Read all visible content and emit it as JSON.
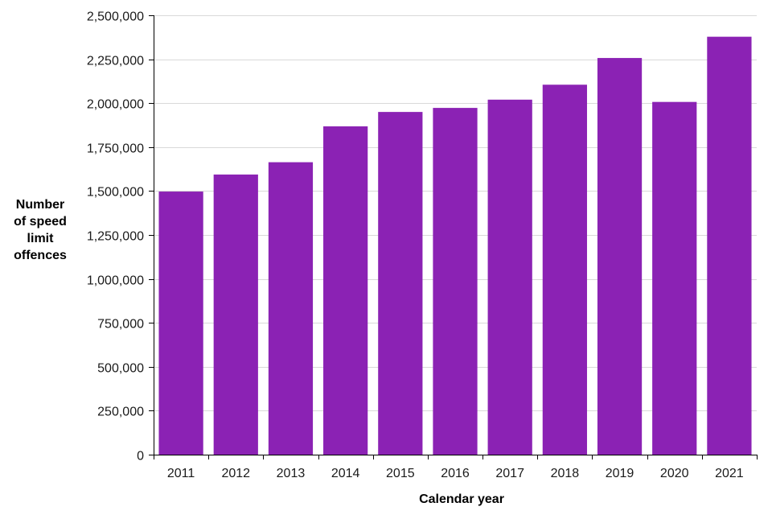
{
  "chart_data": {
    "type": "bar",
    "title": "",
    "xlabel": "Calendar year",
    "ylabel_lines": [
      "Number",
      "of speed",
      "limit",
      "offences"
    ],
    "categories": [
      "2011",
      "2012",
      "2013",
      "2014",
      "2015",
      "2016",
      "2017",
      "2018",
      "2019",
      "2020",
      "2021"
    ],
    "values": [
      1497000,
      1594000,
      1664000,
      1868000,
      1950000,
      1973000,
      2020000,
      2105000,
      2257000,
      2007000,
      2378000
    ],
    "ylim": [
      0,
      2500000
    ],
    "yticks": [
      0,
      250000,
      500000,
      750000,
      1000000,
      1250000,
      1500000,
      1750000,
      2000000,
      2250000,
      2500000
    ],
    "ytick_labels": [
      "0",
      "250,000",
      "500,000",
      "750,000",
      "1,000,000",
      "1,250,000",
      "1,500,000",
      "1,750,000",
      "2,000,000",
      "2,250,000",
      "2,500,000"
    ],
    "grid": true,
    "legend": "none",
    "bar_color": "#8b22b4",
    "grid_color": "#d9d9d9",
    "axis_color": "#000000"
  }
}
